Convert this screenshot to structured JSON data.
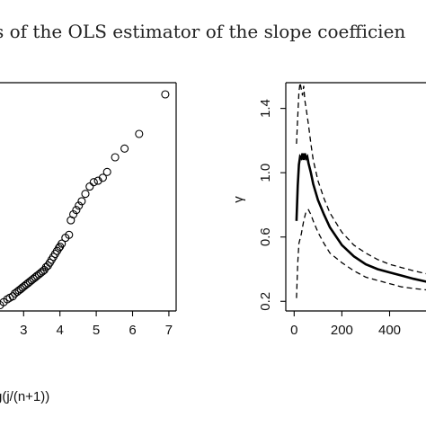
{
  "caption": "s of the OLS estimator of the slope coefficien",
  "chart_data": [
    {
      "type": "scatter",
      "title": "",
      "xlabel": "g(j/(n+1))",
      "ylabel": "",
      "xlim": [
        2.3,
        7.2
      ],
      "ylim": [
        0,
        1.56
      ],
      "x_ticks": [
        3,
        4,
        5,
        6,
        7
      ],
      "x_tick_labels": [
        "3",
        "4",
        "5",
        "6",
        "7"
      ],
      "marker": "open-circle",
      "points": [
        {
          "x": 2.35,
          "y": 0.04
        },
        {
          "x": 2.45,
          "y": 0.06
        },
        {
          "x": 2.55,
          "y": 0.08
        },
        {
          "x": 2.62,
          "y": 0.09
        },
        {
          "x": 2.7,
          "y": 0.1
        },
        {
          "x": 2.76,
          "y": 0.12
        },
        {
          "x": 2.82,
          "y": 0.13
        },
        {
          "x": 2.87,
          "y": 0.14
        },
        {
          "x": 2.92,
          "y": 0.15
        },
        {
          "x": 2.97,
          "y": 0.16
        },
        {
          "x": 3.02,
          "y": 0.17
        },
        {
          "x": 3.07,
          "y": 0.18
        },
        {
          "x": 3.12,
          "y": 0.19
        },
        {
          "x": 3.17,
          "y": 0.2
        },
        {
          "x": 3.22,
          "y": 0.21
        },
        {
          "x": 3.27,
          "y": 0.22
        },
        {
          "x": 3.32,
          "y": 0.23
        },
        {
          "x": 3.37,
          "y": 0.24
        },
        {
          "x": 3.42,
          "y": 0.25
        },
        {
          "x": 3.47,
          "y": 0.26
        },
        {
          "x": 3.52,
          "y": 0.27
        },
        {
          "x": 3.57,
          "y": 0.28
        },
        {
          "x": 3.62,
          "y": 0.3
        },
        {
          "x": 3.67,
          "y": 0.31
        },
        {
          "x": 3.72,
          "y": 0.33
        },
        {
          "x": 3.77,
          "y": 0.35
        },
        {
          "x": 3.82,
          "y": 0.37
        },
        {
          "x": 3.87,
          "y": 0.39
        },
        {
          "x": 3.92,
          "y": 0.41
        },
        {
          "x": 3.97,
          "y": 0.43
        },
        {
          "x": 4.0,
          "y": 0.44
        },
        {
          "x": 4.05,
          "y": 0.46
        },
        {
          "x": 4.15,
          "y": 0.5
        },
        {
          "x": 4.25,
          "y": 0.52
        },
        {
          "x": 4.3,
          "y": 0.62
        },
        {
          "x": 4.37,
          "y": 0.66
        },
        {
          "x": 4.45,
          "y": 0.69
        },
        {
          "x": 4.52,
          "y": 0.72
        },
        {
          "x": 4.6,
          "y": 0.75
        },
        {
          "x": 4.7,
          "y": 0.8
        },
        {
          "x": 4.82,
          "y": 0.85
        },
        {
          "x": 4.93,
          "y": 0.88
        },
        {
          "x": 5.05,
          "y": 0.89
        },
        {
          "x": 5.18,
          "y": 0.91
        },
        {
          "x": 5.3,
          "y": 0.95
        },
        {
          "x": 5.52,
          "y": 1.05
        },
        {
          "x": 5.78,
          "y": 1.11
        },
        {
          "x": 6.18,
          "y": 1.21
        },
        {
          "x": 6.9,
          "y": 1.48
        }
      ]
    },
    {
      "type": "line",
      "title": "",
      "xlabel": "",
      "ylabel": "γ",
      "xlim": [
        -35,
        560
      ],
      "ylim": [
        0.14,
        1.56
      ],
      "x_ticks": [
        0,
        200,
        400
      ],
      "x_tick_labels": [
        "0",
        "200",
        "400"
      ],
      "y_ticks": [
        0.2,
        0.6,
        1.0,
        1.4
      ],
      "y_tick_labels": [
        "0.2",
        "0.6",
        "1.0",
        "1.4"
      ],
      "series": [
        {
          "style": "solid",
          "x": [
            10,
            15,
            20,
            25,
            30,
            35,
            40,
            45,
            50,
            55,
            60,
            70,
            80,
            100,
            125,
            150,
            200,
            250,
            300,
            350,
            400,
            450,
            500,
            560
          ],
          "y": [
            0.7,
            0.92,
            1.05,
            1.1,
            1.09,
            1.12,
            1.08,
            1.12,
            1.09,
            1.1,
            1.06,
            1.0,
            0.93,
            0.83,
            0.74,
            0.66,
            0.55,
            0.48,
            0.43,
            0.4,
            0.38,
            0.36,
            0.34,
            0.32
          ]
        },
        {
          "style": "dashed",
          "x": [
            10,
            15,
            20,
            25,
            30,
            35,
            40,
            45,
            50,
            60,
            70,
            80,
            100,
            125,
            150,
            200,
            250,
            300,
            350,
            400,
            450,
            500,
            560
          ],
          "y": [
            1.18,
            1.35,
            1.5,
            1.56,
            1.52,
            1.48,
            1.54,
            1.45,
            1.4,
            1.3,
            1.18,
            1.08,
            0.95,
            0.84,
            0.75,
            0.63,
            0.55,
            0.5,
            0.46,
            0.43,
            0.41,
            0.39,
            0.37
          ]
        },
        {
          "style": "dashed",
          "x": [
            10,
            15,
            20,
            30,
            40,
            50,
            60,
            70,
            80,
            100,
            125,
            150,
            200,
            250,
            300,
            350,
            400,
            450,
            500,
            560
          ],
          "y": [
            0.22,
            0.44,
            0.56,
            0.62,
            0.7,
            0.76,
            0.77,
            0.74,
            0.7,
            0.63,
            0.56,
            0.5,
            0.44,
            0.39,
            0.35,
            0.33,
            0.31,
            0.29,
            0.28,
            0.27
          ]
        }
      ]
    }
  ]
}
